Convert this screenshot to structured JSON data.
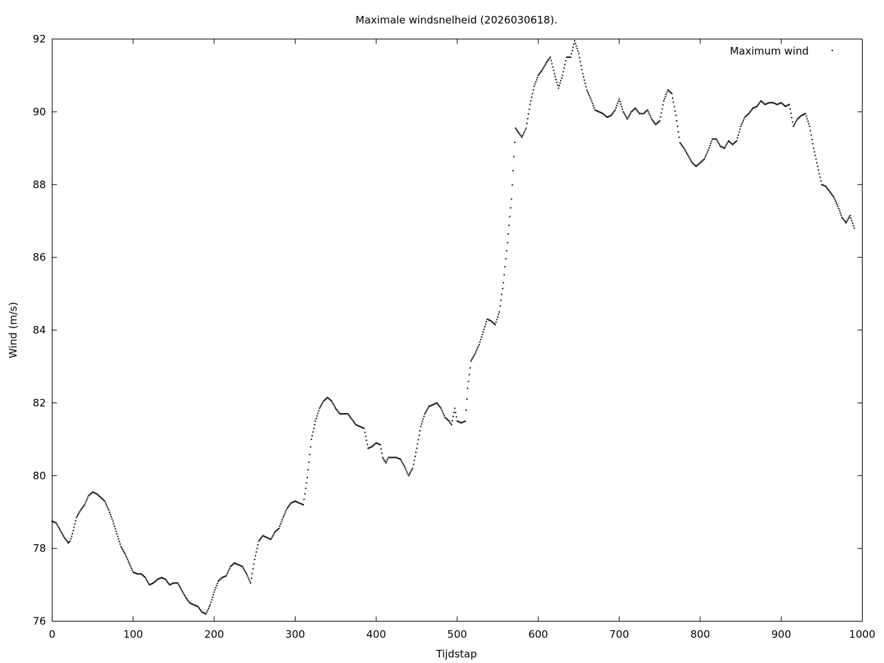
{
  "chart_data": {
    "type": "scatter",
    "title": "Maximale windsnelheid (2026030618).",
    "xlabel": "Tijdstap",
    "ylabel": "Wind (m/s)",
    "xlim": [
      0,
      1000
    ],
    "ylim": [
      76,
      92
    ],
    "xticks": [
      "0",
      "100",
      "200",
      "300",
      "400",
      "500",
      "600",
      "700",
      "800",
      "900",
      "1000"
    ],
    "yticks": [
      "76",
      "78",
      "80",
      "82",
      "84",
      "86",
      "88",
      "90",
      "92"
    ],
    "grid": false,
    "legend": "top-right",
    "series": [
      {
        "name": "Maximum wind",
        "color": "#1a1a1a",
        "points": [
          [
            0,
            78.75
          ],
          [
            5,
            78.7
          ],
          [
            10,
            78.5
          ],
          [
            15,
            78.3
          ],
          [
            20,
            78.15
          ],
          [
            22,
            78.2
          ],
          [
            25,
            78.4
          ],
          [
            30,
            78.85
          ],
          [
            35,
            79.05
          ],
          [
            40,
            79.2
          ],
          [
            45,
            79.45
          ],
          [
            50,
            79.55
          ],
          [
            55,
            79.5
          ],
          [
            60,
            79.4
          ],
          [
            65,
            79.3
          ],
          [
            70,
            79.05
          ],
          [
            75,
            78.75
          ],
          [
            80,
            78.4
          ],
          [
            85,
            78.05
          ],
          [
            90,
            77.85
          ],
          [
            95,
            77.6
          ],
          [
            100,
            77.35
          ],
          [
            105,
            77.3
          ],
          [
            110,
            77.3
          ],
          [
            115,
            77.2
          ],
          [
            120,
            77.0
          ],
          [
            125,
            77.05
          ],
          [
            130,
            77.15
          ],
          [
            135,
            77.2
          ],
          [
            140,
            77.15
          ],
          [
            145,
            77.0
          ],
          [
            150,
            77.05
          ],
          [
            155,
            77.05
          ],
          [
            160,
            76.85
          ],
          [
            165,
            76.65
          ],
          [
            170,
            76.5
          ],
          [
            175,
            76.45
          ],
          [
            180,
            76.4
          ],
          [
            185,
            76.25
          ],
          [
            190,
            76.2
          ],
          [
            195,
            76.45
          ],
          [
            200,
            76.8
          ],
          [
            205,
            77.1
          ],
          [
            210,
            77.2
          ],
          [
            215,
            77.25
          ],
          [
            220,
            77.5
          ],
          [
            225,
            77.6
          ],
          [
            230,
            77.55
          ],
          [
            235,
            77.5
          ],
          [
            240,
            77.3
          ],
          [
            245,
            77.05
          ],
          [
            250,
            77.7
          ],
          [
            255,
            78.2
          ],
          [
            260,
            78.35
          ],
          [
            265,
            78.3
          ],
          [
            270,
            78.25
          ],
          [
            275,
            78.45
          ],
          [
            280,
            78.55
          ],
          [
            285,
            78.85
          ],
          [
            290,
            79.1
          ],
          [
            295,
            79.25
          ],
          [
            300,
            79.3
          ],
          [
            305,
            79.25
          ],
          [
            310,
            79.2
          ],
          [
            315,
            79.95
          ],
          [
            320,
            81.0
          ],
          [
            325,
            81.5
          ],
          [
            330,
            81.85
          ],
          [
            335,
            82.05
          ],
          [
            340,
            82.15
          ],
          [
            345,
            82.05
          ],
          [
            350,
            81.85
          ],
          [
            355,
            81.7
          ],
          [
            360,
            81.7
          ],
          [
            365,
            81.7
          ],
          [
            370,
            81.55
          ],
          [
            375,
            81.4
          ],
          [
            380,
            81.35
          ],
          [
            385,
            81.3
          ],
          [
            390,
            80.75
          ],
          [
            395,
            80.8
          ],
          [
            400,
            80.9
          ],
          [
            405,
            80.85
          ],
          [
            408,
            80.5
          ],
          [
            412,
            80.35
          ],
          [
            415,
            80.5
          ],
          [
            420,
            80.5
          ],
          [
            425,
            80.5
          ],
          [
            430,
            80.45
          ],
          [
            435,
            80.25
          ],
          [
            440,
            80.0
          ],
          [
            445,
            80.2
          ],
          [
            450,
            80.75
          ],
          [
            455,
            81.35
          ],
          [
            460,
            81.7
          ],
          [
            465,
            81.9
          ],
          [
            470,
            81.95
          ],
          [
            475,
            82.0
          ],
          [
            480,
            81.85
          ],
          [
            485,
            81.6
          ],
          [
            490,
            81.5
          ],
          [
            493,
            81.4
          ],
          [
            497,
            81.85
          ],
          [
            500,
            81.5
          ],
          [
            505,
            81.45
          ],
          [
            510,
            81.5
          ],
          [
            513,
            82.4
          ],
          [
            517,
            83.15
          ],
          [
            522,
            83.35
          ],
          [
            527,
            83.6
          ],
          [
            532,
            83.95
          ],
          [
            537,
            84.3
          ],
          [
            542,
            84.25
          ],
          [
            547,
            84.15
          ],
          [
            552,
            84.5
          ],
          [
            557,
            85.3
          ],
          [
            562,
            86.4
          ],
          [
            567,
            87.6
          ],
          [
            572,
            89.55
          ],
          [
            575,
            89.45
          ],
          [
            580,
            89.3
          ],
          [
            585,
            89.55
          ],
          [
            590,
            90.2
          ],
          [
            595,
            90.7
          ],
          [
            600,
            91.0
          ],
          [
            605,
            91.15
          ],
          [
            610,
            91.35
          ],
          [
            615,
            91.5
          ],
          [
            620,
            91.05
          ],
          [
            625,
            90.65
          ],
          [
            630,
            91.0
          ],
          [
            635,
            91.5
          ],
          [
            640,
            91.5
          ],
          [
            645,
            91.95
          ],
          [
            650,
            91.6
          ],
          [
            655,
            91.05
          ],
          [
            660,
            90.6
          ],
          [
            665,
            90.35
          ],
          [
            670,
            90.05
          ],
          [
            675,
            90.0
          ],
          [
            680,
            89.95
          ],
          [
            685,
            89.85
          ],
          [
            690,
            89.9
          ],
          [
            695,
            90.05
          ],
          [
            700,
            90.35
          ],
          [
            705,
            90.0
          ],
          [
            710,
            89.8
          ],
          [
            715,
            90.0
          ],
          [
            720,
            90.1
          ],
          [
            725,
            89.95
          ],
          [
            730,
            89.95
          ],
          [
            735,
            90.05
          ],
          [
            740,
            89.8
          ],
          [
            745,
            89.65
          ],
          [
            750,
            89.75
          ],
          [
            755,
            90.3
          ],
          [
            760,
            90.6
          ],
          [
            765,
            90.5
          ],
          [
            770,
            89.9
          ],
          [
            775,
            89.15
          ],
          [
            780,
            89.0
          ],
          [
            785,
            88.8
          ],
          [
            790,
            88.6
          ],
          [
            795,
            88.5
          ],
          [
            800,
            88.6
          ],
          [
            805,
            88.7
          ],
          [
            810,
            88.95
          ],
          [
            815,
            89.25
          ],
          [
            820,
            89.25
          ],
          [
            825,
            89.05
          ],
          [
            830,
            89.0
          ],
          [
            835,
            89.2
          ],
          [
            840,
            89.1
          ],
          [
            845,
            89.2
          ],
          [
            850,
            89.6
          ],
          [
            855,
            89.85
          ],
          [
            860,
            89.95
          ],
          [
            865,
            90.1
          ],
          [
            870,
            90.15
          ],
          [
            875,
            90.3
          ],
          [
            880,
            90.2
          ],
          [
            885,
            90.25
          ],
          [
            890,
            90.25
          ],
          [
            895,
            90.2
          ],
          [
            900,
            90.25
          ],
          [
            905,
            90.15
          ],
          [
            910,
            90.2
          ],
          [
            915,
            89.6
          ],
          [
            920,
            89.8
          ],
          [
            925,
            89.9
          ],
          [
            930,
            89.95
          ],
          [
            935,
            89.6
          ],
          [
            940,
            89.0
          ],
          [
            945,
            88.5
          ],
          [
            950,
            88.0
          ],
          [
            955,
            87.95
          ],
          [
            960,
            87.8
          ],
          [
            965,
            87.65
          ],
          [
            970,
            87.4
          ],
          [
            975,
            87.1
          ],
          [
            980,
            86.95
          ],
          [
            985,
            87.15
          ],
          [
            990,
            86.8
          ]
        ]
      }
    ]
  }
}
